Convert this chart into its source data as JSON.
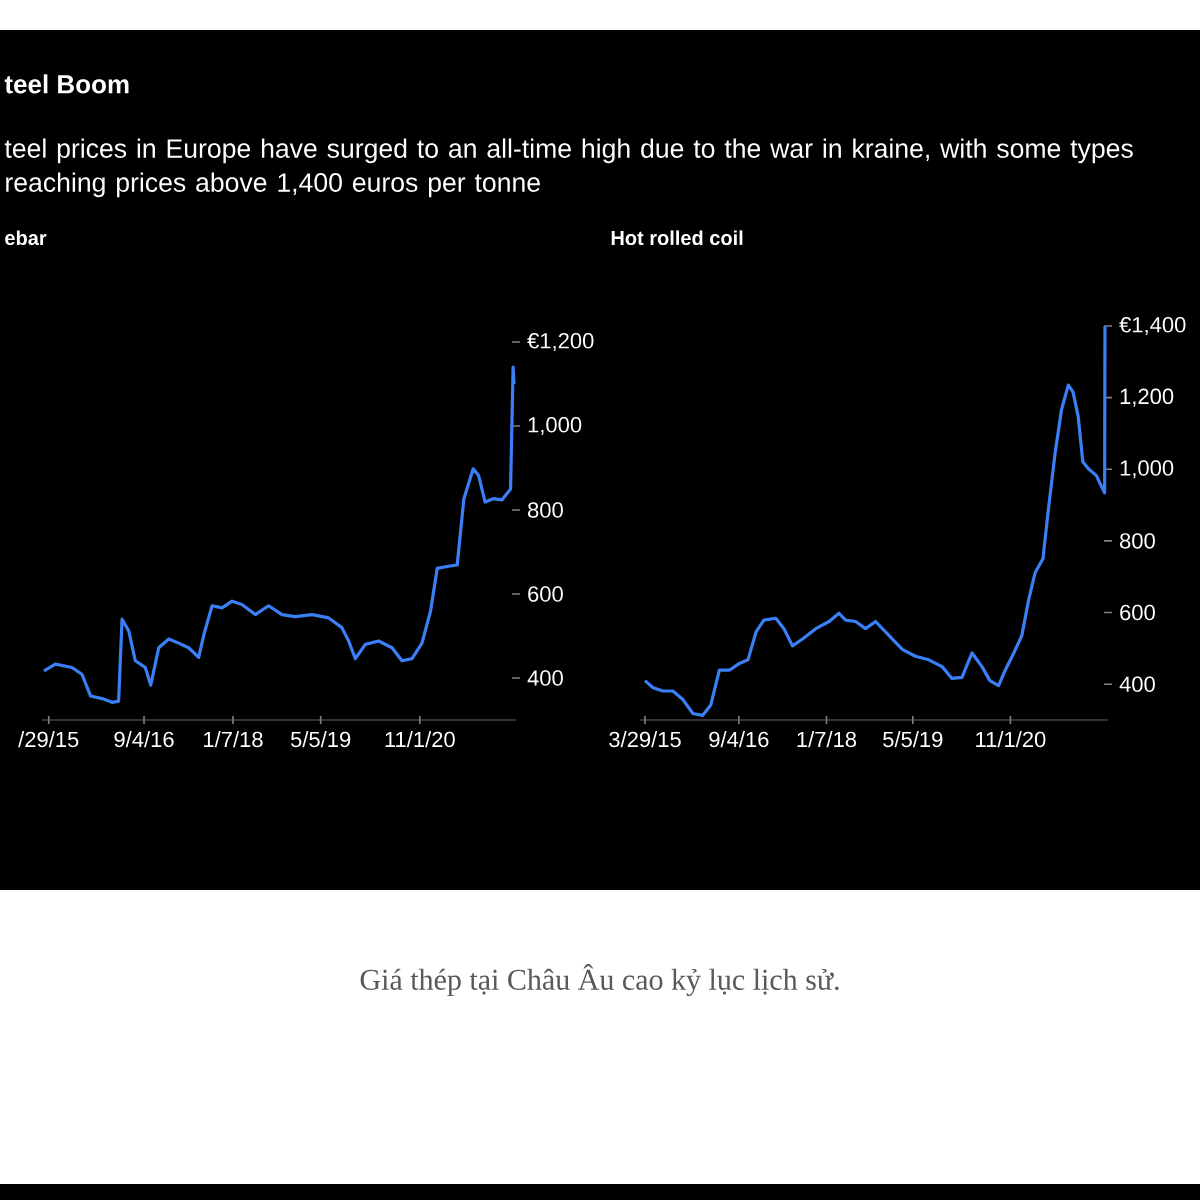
{
  "chart_data": [
    {
      "type": "line",
      "title": "teel Boom",
      "subtitle": "teel prices in Europe have surged to an all-time high due to the war in kraine, with some types reaching prices above 1,400 euros per tonne",
      "annotations": [
        "ebar",
        "Giá thép tại Châu Âu cao kỷ lục lịch sử."
      ],
      "color": "#3a7ff5",
      "x": [
        "2015-03-03",
        "2015-05-05",
        "2015-08-04",
        "2015-09-28",
        "2015-11-15",
        "2016-01-17",
        "2016-03-12",
        "2016-04-17",
        "2016-05-06",
        "2016-06-12",
        "2016-07-18",
        "2016-09-11",
        "2016-10-11",
        "2016-11-24",
        "2017-01-18",
        "2017-03-14",
        "2017-05-08",
        "2017-07-02",
        "2017-07-31",
        "2017-09-14",
        "2017-11-08",
        "2018-01-02",
        "2018-02-25",
        "2018-05-10",
        "2018-07-22",
        "2018-10-04",
        "2018-12-16",
        "2019-03-18",
        "2019-06-18",
        "2019-08-30",
        "2019-10-06",
        "2019-11-12",
        "2020-01-06",
        "2020-03-19",
        "2020-06-01",
        "2020-07-26",
        "2020-09-19",
        "2020-11-13",
        "2020-12-30",
        "2021-02-05",
        "2021-04-08",
        "2021-05-26",
        "2021-07-02",
        "2021-08-22",
        "2021-09-21",
        "2021-10-27",
        "2021-12-10",
        "2022-01-27",
        "2022-03-16",
        "2022-03-30",
        "2022-04-04"
      ],
      "values": [
        417,
        433,
        425,
        409,
        357,
        351,
        342,
        345,
        540,
        512,
        441,
        425,
        383,
        472,
        493,
        483,
        472,
        449,
        504,
        572,
        567,
        583,
        575,
        551,
        572,
        551,
        546,
        551,
        543,
        520,
        488,
        446,
        480,
        488,
        472,
        441,
        446,
        483,
        559,
        661,
        666,
        669,
        827,
        898,
        882,
        819,
        827,
        824,
        850,
        1140,
        1100
      ],
      "xlim": [
        "2015-02-20",
        "2022-04-15"
      ],
      "ylim": [
        300,
        1200
      ],
      "xticks": [
        {
          "value": "2015-03-29",
          "label": "/29/15"
        },
        {
          "value": "2016-09-04",
          "label": "9/4/16"
        },
        {
          "value": "2018-01-07",
          "label": "1/7/18"
        },
        {
          "value": "2019-05-05",
          "label": "5/5/19"
        },
        {
          "value": "2020-11-01",
          "label": "11/1/20"
        }
      ],
      "yticks": [
        400,
        600,
        800,
        {
          "value": 1000,
          "label": "1,000"
        },
        {
          "value": 1200,
          "label": "€1,200"
        }
      ]
    },
    {
      "type": "line",
      "title": "Hot rolled coil",
      "color": "#3a7ff5",
      "x": [
        "2015-03-29",
        "2015-05-13",
        "2015-07-07",
        "2015-09-01",
        "2015-10-27",
        "2015-12-22",
        "2016-02-15",
        "2016-03-31",
        "2016-05-18",
        "2016-07-13",
        "2016-09-07",
        "2016-10-25",
        "2016-12-09",
        "2017-01-22",
        "2017-03-30",
        "2017-05-14",
        "2017-07-01",
        "2017-08-26",
        "2017-11-08",
        "2018-01-22",
        "2018-03-18",
        "2018-04-24",
        "2018-06-19",
        "2018-08-14",
        "2018-10-09",
        "2018-12-22",
        "2019-03-07",
        "2019-05-20",
        "2019-08-02",
        "2019-10-16",
        "2019-12-10",
        "2020-02-04",
        "2020-03-31",
        "2020-05-26",
        "2020-07-09",
        "2020-08-27",
        "2020-10-03",
        "2020-11-20",
        "2021-01-04",
        "2021-02-10",
        "2021-03-19",
        "2021-05-02",
        "2021-06-01",
        "2021-07-08",
        "2021-08-14",
        "2021-09-21",
        "2021-10-17",
        "2021-11-15",
        "2021-12-11",
        "2022-01-10",
        "2022-02-24",
        "2022-04-12",
        "2022-04-14"
      ],
      "values": [
        410,
        390,
        381,
        381,
        357,
        318,
        313,
        342,
        439,
        439,
        458,
        468,
        546,
        579,
        584,
        555,
        507,
        526,
        555,
        575,
        598,
        579,
        575,
        555,
        575,
        536,
        497,
        478,
        468,
        449,
        416,
        419,
        487,
        449,
        410,
        396,
        439,
        487,
        536,
        633,
        711,
        750,
        886,
        1041,
        1167,
        1235,
        1216,
        1148,
        1021,
        1002,
        983,
        934,
        1400
      ],
      "xlim": [
        "2015-03-01",
        "2022-05-01"
      ],
      "ylim": [
        300,
        1400
      ],
      "xticks": [
        {
          "value": "2015-03-29",
          "label": "3/29/15"
        },
        {
          "value": "2016-09-04",
          "label": "9/4/16"
        },
        {
          "value": "2018-01-07",
          "label": "1/7/18"
        },
        {
          "value": "2019-05-05",
          "label": "5/5/19"
        },
        {
          "value": "2020-11-01",
          "label": "11/1/20"
        }
      ],
      "yticks": [
        400,
        600,
        800,
        {
          "value": 1000,
          "label": "1,000"
        },
        {
          "value": 1200,
          "label": "1,200"
        },
        {
          "value": 1400,
          "label": "€1,400"
        }
      ]
    }
  ]
}
